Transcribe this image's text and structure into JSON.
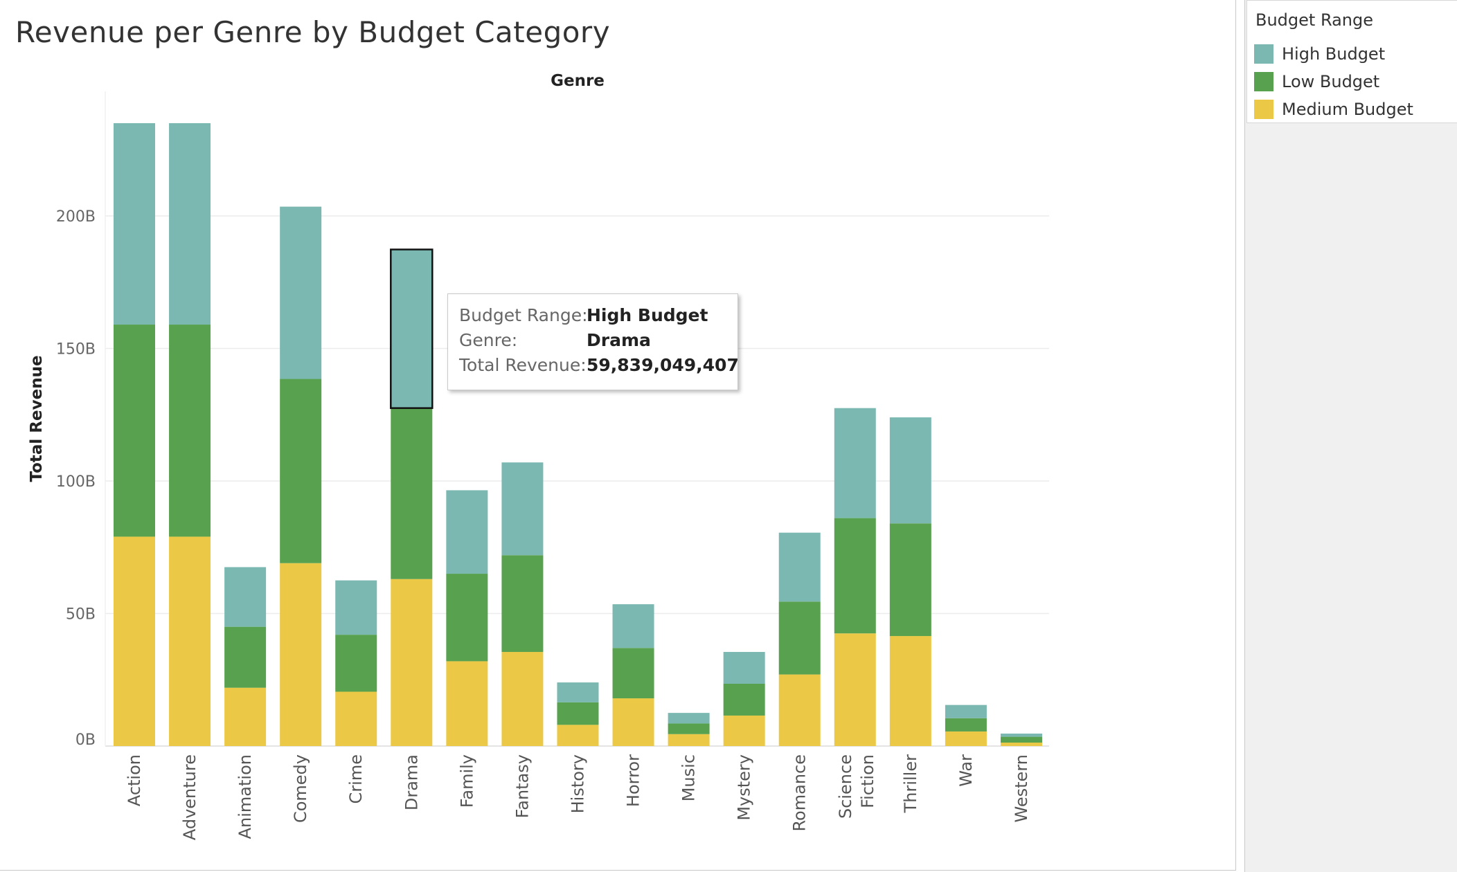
{
  "title": "Revenue per Genre by Budget Category",
  "colors": {
    "High Budget": "#7ab8b1",
    "Low Budget": "#58a14e",
    "Medium Budget": "#ebc845",
    "gridline": "#ececec",
    "highlight_border": "#111111"
  },
  "legend": {
    "title": "Budget Range",
    "items": [
      {
        "label": "High Budget",
        "color": "#7ab8b1"
      },
      {
        "label": "Low Budget",
        "color": "#58a14e"
      },
      {
        "label": "Medium Budget",
        "color": "#ebc845"
      }
    ]
  },
  "tooltip": {
    "rows": [
      {
        "key": "Budget Range:",
        "value": "High Budget"
      },
      {
        "key": "Genre:",
        "value": "Drama"
      },
      {
        "key": "Total Revenue:",
        "value": "59,839,049,407"
      }
    ]
  },
  "chart_data": {
    "type": "bar",
    "stacked": true,
    "title": "Revenue per Genre by Budget Category",
    "xlabel": "Genre",
    "ylabel": "Total Revenue",
    "ylim": [
      0,
      240
    ],
    "yticks": [
      0,
      50,
      100,
      150,
      200
    ],
    "ytick_labels": [
      "0B",
      "50B",
      "100B",
      "150B",
      "200B"
    ],
    "units": "billions",
    "categories": [
      "Action",
      "Adventure",
      "Animation",
      "Comedy",
      "Crime",
      "Drama",
      "Family",
      "Fantasy",
      "History",
      "Horror",
      "Music",
      "Mystery",
      "Romance",
      "Science Fiction",
      "Thriller",
      "War",
      "Western"
    ],
    "series": [
      {
        "name": "Medium Budget",
        "values": [
          79,
          79,
          22,
          69,
          20.5,
          63,
          32,
          35.5,
          8,
          18,
          4.5,
          11.5,
          27,
          42.5,
          41.5,
          5.5,
          1.3
        ]
      },
      {
        "name": "Low Budget",
        "values": [
          80,
          80,
          23,
          69.5,
          21.5,
          64.5,
          33,
          36.5,
          8.5,
          19,
          4,
          12,
          27.5,
          43.5,
          42.5,
          5,
          2.2
        ]
      },
      {
        "name": "High Budget",
        "values": [
          76,
          76,
          22.5,
          65,
          20.5,
          59.84,
          31.5,
          35,
          7.5,
          16.5,
          4,
          12,
          26,
          41.5,
          40,
          5,
          1.2
        ]
      }
    ],
    "grid": true,
    "legend_position": "right",
    "highlight": {
      "category": "Drama",
      "series": "High Budget"
    }
  }
}
